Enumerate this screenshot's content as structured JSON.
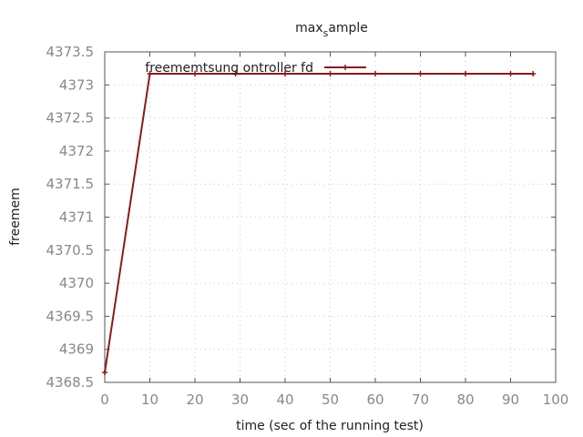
{
  "chart_data": {
    "type": "line",
    "title": "max_sample",
    "title_base": "max",
    "title_sub": "s",
    "title_rest": "ample",
    "xlabel": "time (sec of the running test)",
    "ylabel": "freemem",
    "xlim": [
      0,
      100
    ],
    "ylim": [
      4368.5,
      4373.5
    ],
    "x_ticks": [
      "0",
      "10",
      "20",
      "30",
      "40",
      "50",
      "60",
      "70",
      "80",
      "90",
      "100"
    ],
    "y_ticks": [
      "4368.5",
      "4369",
      "4369.5",
      "4370",
      "4370.5",
      "4371",
      "4371.5",
      "4372",
      "4372.5",
      "4373",
      "4373.5"
    ],
    "grid": true,
    "legend_position": "top-left",
    "series": [
      {
        "name": "freememtsung_controller.fd",
        "legend_label": "freememtsung ontroller fd",
        "color": "#8b1a1a",
        "x": [
          0,
          10,
          20,
          29,
          40,
          50,
          60,
          70,
          80,
          90,
          95
        ],
        "y": [
          4368.65,
          4373.17,
          4373.17,
          4373.17,
          4373.17,
          4373.17,
          4373.17,
          4373.17,
          4373.17,
          4373.17,
          4373.17
        ]
      }
    ]
  }
}
